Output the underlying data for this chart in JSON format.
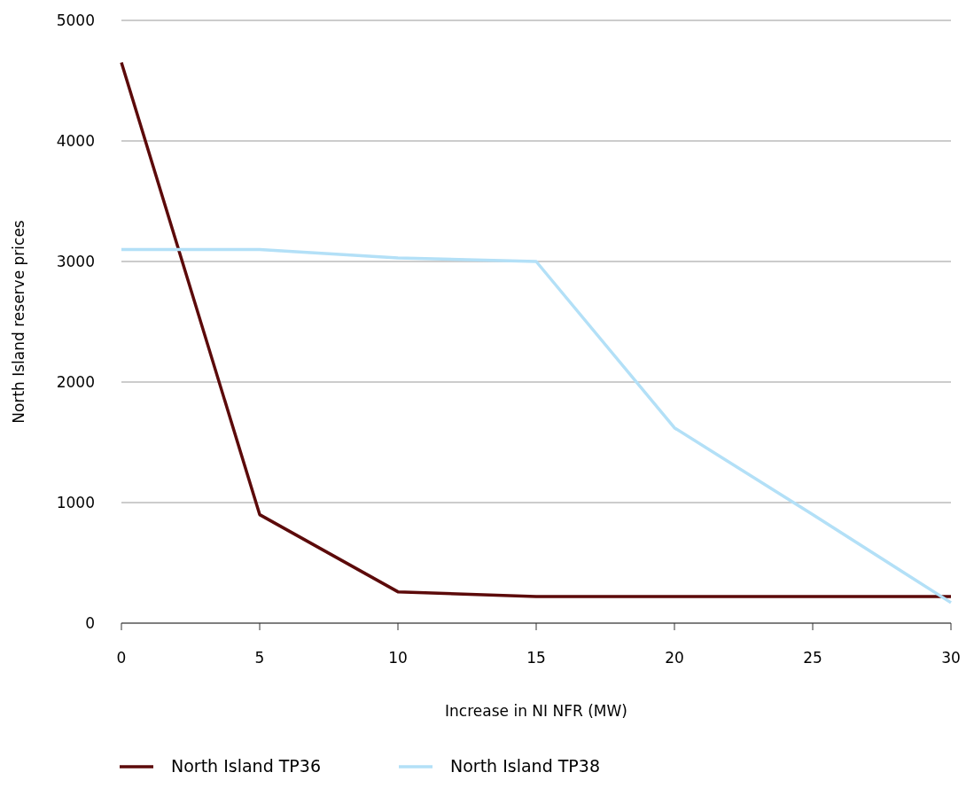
{
  "chart_data": {
    "type": "line",
    "xlabel": "Increase in NI NFR (MW)",
    "ylabel": "North Island reserve prices",
    "x": [
      0,
      5,
      10,
      15,
      20,
      25,
      30
    ],
    "series": [
      {
        "name": "North Island TP36",
        "color": "#5c0a0a",
        "values": [
          4650,
          900,
          260,
          220,
          220,
          220,
          220
        ]
      },
      {
        "name": "North Island TP38",
        "color": "#b3e0f7",
        "values": [
          3100,
          3100,
          3030,
          3000,
          1620,
          900,
          170
        ]
      }
    ],
    "xlim": [
      0,
      30
    ],
    "xticks": [
      0,
      5,
      10,
      15,
      20,
      25,
      30
    ],
    "ylim": [
      0,
      5000
    ],
    "yticks": [
      0,
      1000,
      2000,
      3000,
      4000,
      5000
    ],
    "grid": "y",
    "legend": "bottom",
    "marker": "none",
    "line_style": "solid"
  }
}
